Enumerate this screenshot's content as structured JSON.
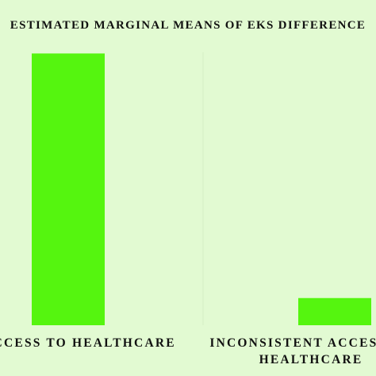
{
  "chart_data": {
    "type": "bar",
    "title": "ESTIMATED MARGINAL MEANS OF EKS DIFFERENCE",
    "categories": [
      [
        "ACCESS TO HEALTHCARE"
      ],
      [
        "INCONSISTENT ACCESS TO",
        "HEALTHCARE"
      ]
    ],
    "values": [
      1.0,
      0.1
    ],
    "ylim": [
      0,
      1.08
    ],
    "grid": false,
    "bar_color": "#55f50f"
  }
}
